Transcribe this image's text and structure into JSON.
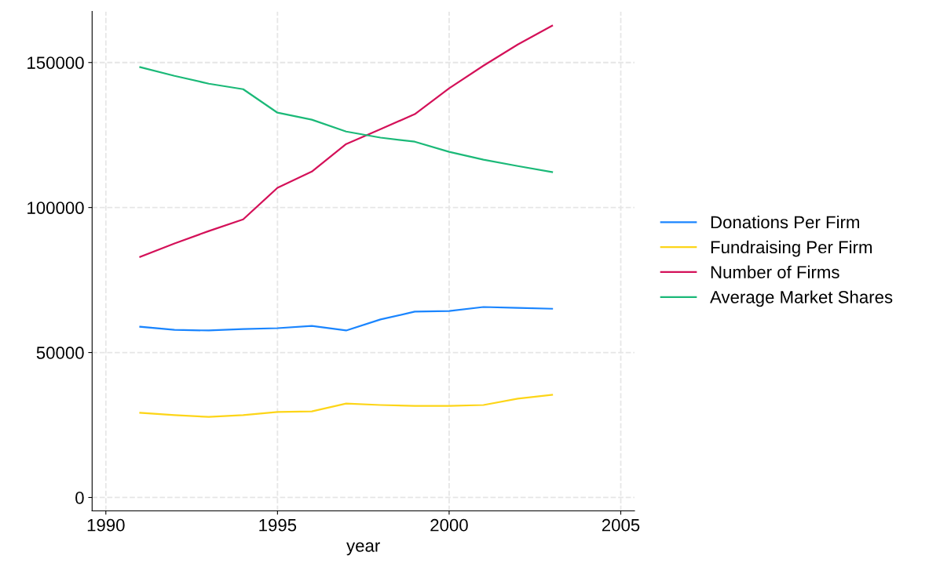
{
  "chart_data": {
    "type": "line",
    "xlabel": "year",
    "x": [
      1991,
      1992,
      1993,
      1994,
      1995,
      1996,
      1997,
      1998,
      1999,
      2000,
      2001,
      2002,
      2003
    ],
    "series": [
      {
        "name": "Donations Per Firm",
        "color": "#1a85ff",
        "values": [
          58900,
          57800,
          57600,
          58100,
          58400,
          59200,
          57600,
          61400,
          64100,
          64300,
          65700,
          65400,
          65100
        ]
      },
      {
        "name": "Fundraising Per Firm",
        "color": "#fdd518",
        "values": [
          29200,
          28400,
          27800,
          28400,
          29500,
          29700,
          32400,
          31900,
          31600,
          31600,
          31900,
          34100,
          35400
        ]
      },
      {
        "name": "Number of Firms",
        "color": "#d41159",
        "values": [
          83000,
          87600,
          91900,
          95900,
          106800,
          112400,
          121900,
          127000,
          132200,
          141100,
          148900,
          156200,
          162700
        ]
      },
      {
        "name": "Average Market Shares",
        "color": "#1bb978",
        "values": [
          148400,
          145400,
          142700,
          140800,
          132700,
          130300,
          126200,
          124100,
          122700,
          119200,
          116500,
          114300,
          112200
        ]
      }
    ],
    "xlim": [
      1989.6,
      2005.4
    ],
    "ylim": [
      -4600,
      167600
    ],
    "xticks": [
      1990,
      1995,
      2000,
      2005
    ],
    "yticks": [
      0,
      50000,
      100000,
      150000
    ],
    "grid": true,
    "legend": "right",
    "marker": "none",
    "line_style": "solid"
  }
}
